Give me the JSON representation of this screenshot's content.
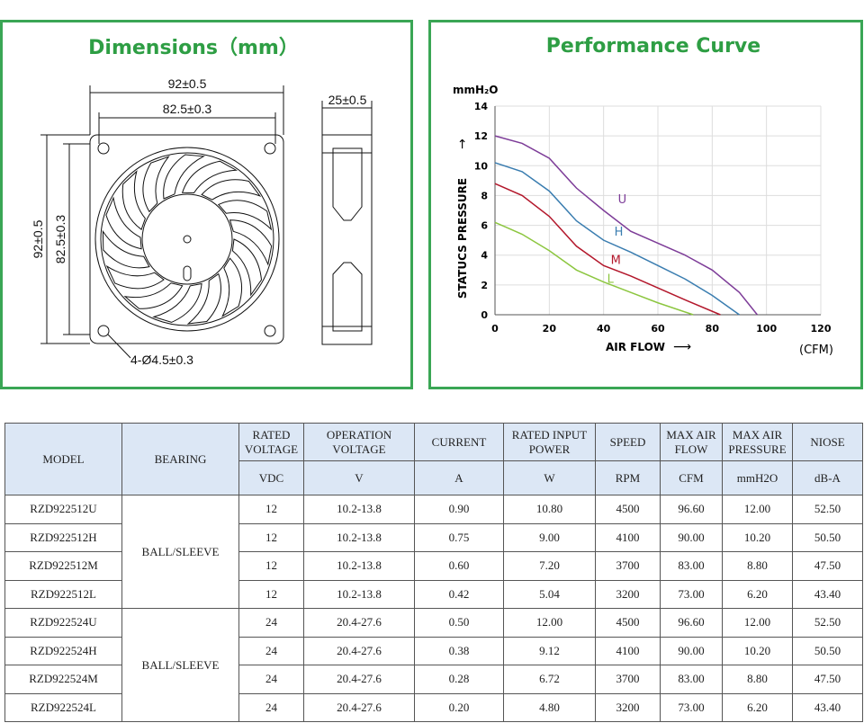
{
  "dimensions": {
    "title": "Dimensions（mm）",
    "width_outer": "92±0.5",
    "width_inner": "82.5±0.3",
    "depth": "25±0.5",
    "height_outer": "92±0.5",
    "height_inner": "82.5±0.3",
    "holes": "4-Ø4.5±0.3"
  },
  "chart_data": {
    "type": "line",
    "title": "Performance Curve",
    "y_unit": "mmH₂O",
    "ylabel": "STATUCS  PRESSURE",
    "xlabel": "AIR FLOW",
    "x_unit": "(CFM)",
    "xlim": [
      0,
      120
    ],
    "xticks": [
      0,
      20,
      40,
      60,
      80,
      100,
      120
    ],
    "ylim": [
      0,
      14
    ],
    "yticks": [
      0,
      2,
      4,
      6,
      8,
      10,
      12,
      14
    ],
    "grid": true,
    "series": [
      {
        "name": "U",
        "color": "#7d3c98",
        "x": [
          0,
          10,
          20,
          30,
          40,
          50,
          60,
          70,
          80,
          90,
          96.6
        ],
        "values": [
          12,
          11.5,
          10.5,
          8.5,
          7,
          5.6,
          4.8,
          4,
          3,
          1.5,
          0
        ]
      },
      {
        "name": "H",
        "color": "#3a7db0",
        "x": [
          0,
          10,
          20,
          30,
          40,
          50,
          60,
          70,
          80,
          90
        ],
        "values": [
          10.2,
          9.6,
          8.3,
          6.3,
          5,
          4.2,
          3.3,
          2.4,
          1.3,
          0
        ]
      },
      {
        "name": "M",
        "color": "#b3172b",
        "x": [
          0,
          10,
          20,
          30,
          40,
          50,
          60,
          70,
          83
        ],
        "values": [
          8.8,
          8,
          6.6,
          4.6,
          3.3,
          2.6,
          1.8,
          1,
          0
        ]
      },
      {
        "name": "L",
        "color": "#8cc63f",
        "x": [
          0,
          10,
          20,
          30,
          40,
          50,
          60,
          73
        ],
        "values": [
          6.2,
          5.4,
          4.3,
          3,
          2.2,
          1.5,
          0.8,
          0
        ]
      }
    ]
  },
  "table": {
    "columns": [
      {
        "name": "MODEL"
      },
      {
        "name": "BEARING"
      },
      {
        "name": "RATED VOLTAGE",
        "unit": "VDC"
      },
      {
        "name": "OPERATION VOLTAGE",
        "unit": "V"
      },
      {
        "name": "CURRENT",
        "unit": "A"
      },
      {
        "name": "RATED INPUT POWER",
        "unit": "W"
      },
      {
        "name": "SPEED",
        "unit": "RPM"
      },
      {
        "name": "MAX AIR FLOW",
        "unit": "CFM"
      },
      {
        "name": "MAX AIR PRESSURE",
        "unit": "mmH2O"
      },
      {
        "name": "NIOSE",
        "unit": "dB-A"
      }
    ],
    "groups": [
      {
        "bearing": "BALL/SLEEVE",
        "rows": [
          [
            "RZD922512U",
            "12",
            "10.2-13.8",
            "0.90",
            "10.80",
            "4500",
            "96.60",
            "12.00",
            "52.50"
          ],
          [
            "RZD922512H",
            "12",
            "10.2-13.8",
            "0.75",
            "9.00",
            "4100",
            "90.00",
            "10.20",
            "50.50"
          ],
          [
            "RZD922512M",
            "12",
            "10.2-13.8",
            "0.60",
            "7.20",
            "3700",
            "83.00",
            "8.80",
            "47.50"
          ],
          [
            "RZD922512L",
            "12",
            "10.2-13.8",
            "0.42",
            "5.04",
            "3200",
            "73.00",
            "6.20",
            "43.40"
          ]
        ]
      },
      {
        "bearing": "BALL/SLEEVE",
        "rows": [
          [
            "RZD922524U",
            "24",
            "20.4-27.6",
            "0.50",
            "12.00",
            "4500",
            "96.60",
            "12.00",
            "52.50"
          ],
          [
            "RZD922524H",
            "24",
            "20.4-27.6",
            "0.38",
            "9.12",
            "4100",
            "90.00",
            "10.20",
            "50.50"
          ],
          [
            "RZD922524M",
            "24",
            "20.4-27.6",
            "0.28",
            "6.72",
            "3700",
            "83.00",
            "8.80",
            "47.50"
          ],
          [
            "RZD922524L",
            "24",
            "20.4-27.6",
            "0.20",
            "4.80",
            "3200",
            "73.00",
            "6.20",
            "43.40"
          ]
        ]
      }
    ]
  }
}
